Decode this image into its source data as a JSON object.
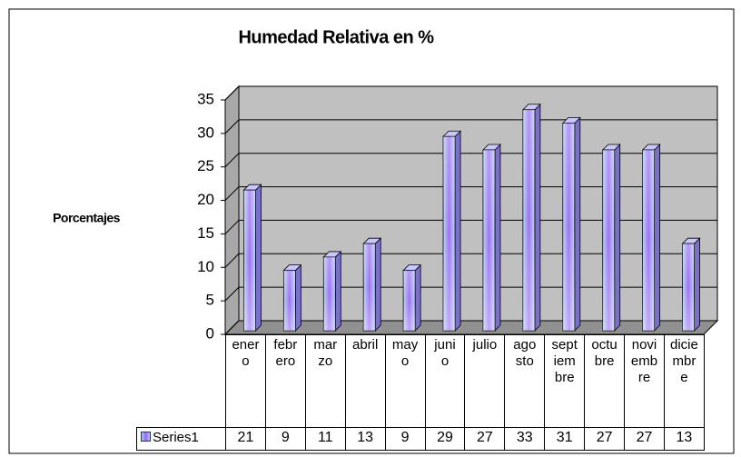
{
  "chart_data": {
    "type": "bar",
    "title": "Humedad Relativa en %",
    "y_label": "Porcentajes",
    "categories": [
      "enero",
      "febrero",
      "marzo",
      "abril",
      "mayo",
      "junio",
      "julio",
      "agosto",
      "septiembre",
      "octubre",
      "noviembre",
      "diciembre"
    ],
    "series": [
      {
        "name": "Series1",
        "color": "#9999ff",
        "values": [
          21,
          9,
          11,
          13,
          9,
          29,
          27,
          33,
          31,
          27,
          27,
          13
        ]
      }
    ],
    "ylim": [
      0,
      35
    ],
    "yticks": [
      0,
      5,
      10,
      15,
      20,
      25,
      30,
      35
    ],
    "grid": true,
    "data_table": true
  }
}
